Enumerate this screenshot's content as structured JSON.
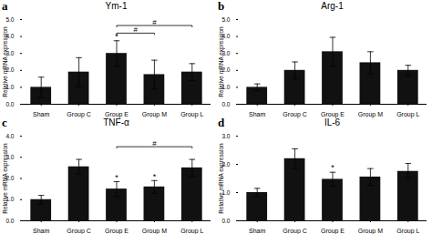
{
  "chart_data": [
    {
      "type": "bar",
      "panel_label": "a",
      "title": "Ym-1",
      "ylabel": "Relative mRNA expression",
      "categories": [
        "Sham",
        "Group C",
        "Group E",
        "Group M",
        "Group L"
      ],
      "values": [
        1.0,
        1.9,
        3.0,
        1.75,
        1.9
      ],
      "errors": [
        0.6,
        0.85,
        0.75,
        0.85,
        0.5
      ],
      "color": "#111111",
      "ylim": [
        0,
        5
      ],
      "yticks": [
        0,
        1,
        2,
        3,
        4,
        5
      ],
      "annotations": [
        {
          "type": "bracket",
          "from": "Group E",
          "to": "Group M",
          "y": 4.2,
          "label": "#"
        },
        {
          "type": "bracket",
          "from": "Group E",
          "to": "Group L",
          "y": 4.65,
          "label": "#"
        },
        {
          "type": "star",
          "x": "Group E",
          "y": 3.82,
          "label": "*"
        }
      ]
    },
    {
      "type": "bar",
      "panel_label": "b",
      "title": "Arg-1",
      "ylabel": "Relative mRNA expression",
      "categories": [
        "Sham",
        "Group C",
        "Group E",
        "Group M",
        "Group L"
      ],
      "values": [
        1.0,
        2.0,
        3.1,
        2.45,
        2.0
      ],
      "errors": [
        0.2,
        0.5,
        0.85,
        0.65,
        0.3
      ],
      "color": "#111111",
      "ylim": [
        0,
        5
      ],
      "yticks": [
        0,
        1,
        2,
        3,
        4,
        5
      ]
    },
    {
      "type": "bar",
      "panel_label": "c",
      "title": "TNF-α",
      "ylabel": "Relative mRNA expression",
      "categories": [
        "Sham",
        "Group C",
        "Group E",
        "Group M",
        "Group L"
      ],
      "values": [
        1.0,
        2.55,
        1.5,
        1.6,
        2.5
      ],
      "errors": [
        0.2,
        0.35,
        0.35,
        0.3,
        0.4
      ],
      "color": "#111111",
      "ylim": [
        0,
        4
      ],
      "yticks": [
        0,
        1,
        2,
        3,
        4
      ],
      "annotations": [
        {
          "type": "bracket",
          "from": "Group E",
          "to": "Group L",
          "y": 3.5,
          "label": "#"
        },
        {
          "type": "star",
          "x": "Group E",
          "y": 1.92,
          "label": "*"
        },
        {
          "type": "star",
          "x": "Group M",
          "y": 1.97,
          "label": "*"
        }
      ]
    },
    {
      "type": "bar",
      "panel_label": "d",
      "title": "IL-6",
      "ylabel": "Relative mRNA expression",
      "categories": [
        "Sham",
        "Group C",
        "Group E",
        "Group M",
        "Group L"
      ],
      "values": [
        1.0,
        2.2,
        1.47,
        1.55,
        1.75
      ],
      "errors": [
        0.15,
        0.35,
        0.25,
        0.3,
        0.28
      ],
      "color": "#111111",
      "ylim": [
        0,
        3
      ],
      "yticks": [
        0,
        1,
        2,
        3
      ],
      "annotations": [
        {
          "type": "star",
          "x": "Group E",
          "y": 1.78,
          "label": "*"
        }
      ]
    }
  ]
}
